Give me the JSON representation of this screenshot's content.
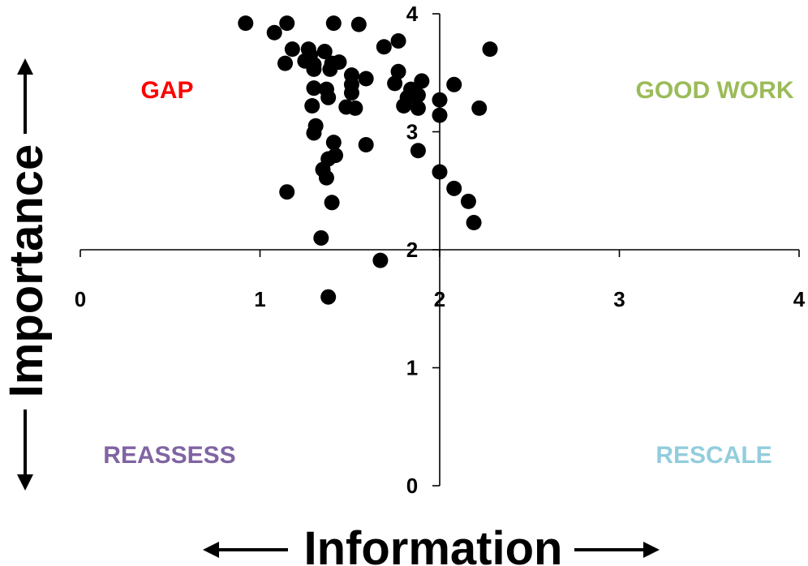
{
  "chart_data": {
    "type": "scatter",
    "title": "",
    "xlabel": "Information",
    "ylabel": "Importance",
    "xlim": [
      0,
      4
    ],
    "ylim": [
      0,
      4
    ],
    "x_origin_at_y": 2,
    "y_origin_at_x": 2,
    "x_ticks": [
      "0",
      "1",
      "2",
      "3",
      "4"
    ],
    "y_ticks": [
      "0",
      "1",
      "2",
      "3",
      "4"
    ],
    "grid": false,
    "legend": "none",
    "marker_color": "#000000",
    "quadrant_labels": [
      {
        "text": "GAP",
        "color": "#ff0000",
        "position": "top-left"
      },
      {
        "text": "GOOD WORK",
        "color": "#9bbb59",
        "position": "top-right"
      },
      {
        "text": "REASSESS",
        "color": "#8064a2",
        "position": "bottom-left"
      },
      {
        "text": "RESCALE",
        "color": "#92cddc",
        "position": "bottom-right"
      }
    ],
    "points": [
      {
        "x": 0.92,
        "y": 3.92
      },
      {
        "x": 1.08,
        "y": 3.84
      },
      {
        "x": 1.15,
        "y": 3.92
      },
      {
        "x": 1.41,
        "y": 3.92
      },
      {
        "x": 1.55,
        "y": 3.91
      },
      {
        "x": 1.77,
        "y": 3.77
      },
      {
        "x": 1.69,
        "y": 3.72
      },
      {
        "x": 2.28,
        "y": 3.7
      },
      {
        "x": 1.18,
        "y": 3.7
      },
      {
        "x": 1.27,
        "y": 3.7
      },
      {
        "x": 1.28,
        "y": 3.65
      },
      {
        "x": 1.36,
        "y": 3.68
      },
      {
        "x": 1.14,
        "y": 3.58
      },
      {
        "x": 1.25,
        "y": 3.6
      },
      {
        "x": 1.3,
        "y": 3.57
      },
      {
        "x": 1.4,
        "y": 3.58
      },
      {
        "x": 1.44,
        "y": 3.59
      },
      {
        "x": 1.3,
        "y": 3.53
      },
      {
        "x": 1.39,
        "y": 3.53
      },
      {
        "x": 1.51,
        "y": 3.48
      },
      {
        "x": 1.77,
        "y": 3.51
      },
      {
        "x": 1.59,
        "y": 3.45
      },
      {
        "x": 1.51,
        "y": 3.4
      },
      {
        "x": 1.75,
        "y": 3.41
      },
      {
        "x": 1.9,
        "y": 3.43
      },
      {
        "x": 2.08,
        "y": 3.4
      },
      {
        "x": 1.3,
        "y": 3.37
      },
      {
        "x": 1.37,
        "y": 3.36
      },
      {
        "x": 1.51,
        "y": 3.33
      },
      {
        "x": 1.84,
        "y": 3.36
      },
      {
        "x": 1.88,
        "y": 3.31
      },
      {
        "x": 1.38,
        "y": 3.29
      },
      {
        "x": 1.82,
        "y": 3.29
      },
      {
        "x": 2.0,
        "y": 3.27
      },
      {
        "x": 1.29,
        "y": 3.22
      },
      {
        "x": 1.48,
        "y": 3.21
      },
      {
        "x": 1.53,
        "y": 3.2
      },
      {
        "x": 1.8,
        "y": 3.22
      },
      {
        "x": 1.88,
        "y": 3.2
      },
      {
        "x": 2.22,
        "y": 3.2
      },
      {
        "x": 2.0,
        "y": 3.14
      },
      {
        "x": 1.31,
        "y": 3.05
      },
      {
        "x": 1.3,
        "y": 2.99
      },
      {
        "x": 1.41,
        "y": 2.91
      },
      {
        "x": 1.59,
        "y": 2.89
      },
      {
        "x": 1.88,
        "y": 2.84
      },
      {
        "x": 1.42,
        "y": 2.8
      },
      {
        "x": 1.38,
        "y": 2.77
      },
      {
        "x": 1.35,
        "y": 2.68
      },
      {
        "x": 1.37,
        "y": 2.61
      },
      {
        "x": 2.0,
        "y": 2.66
      },
      {
        "x": 2.08,
        "y": 2.52
      },
      {
        "x": 1.15,
        "y": 2.49
      },
      {
        "x": 1.4,
        "y": 2.4
      },
      {
        "x": 2.16,
        "y": 2.41
      },
      {
        "x": 2.19,
        "y": 2.23
      },
      {
        "x": 1.34,
        "y": 2.1
      },
      {
        "x": 1.67,
        "y": 1.91
      },
      {
        "x": 1.38,
        "y": 1.6
      }
    ]
  }
}
